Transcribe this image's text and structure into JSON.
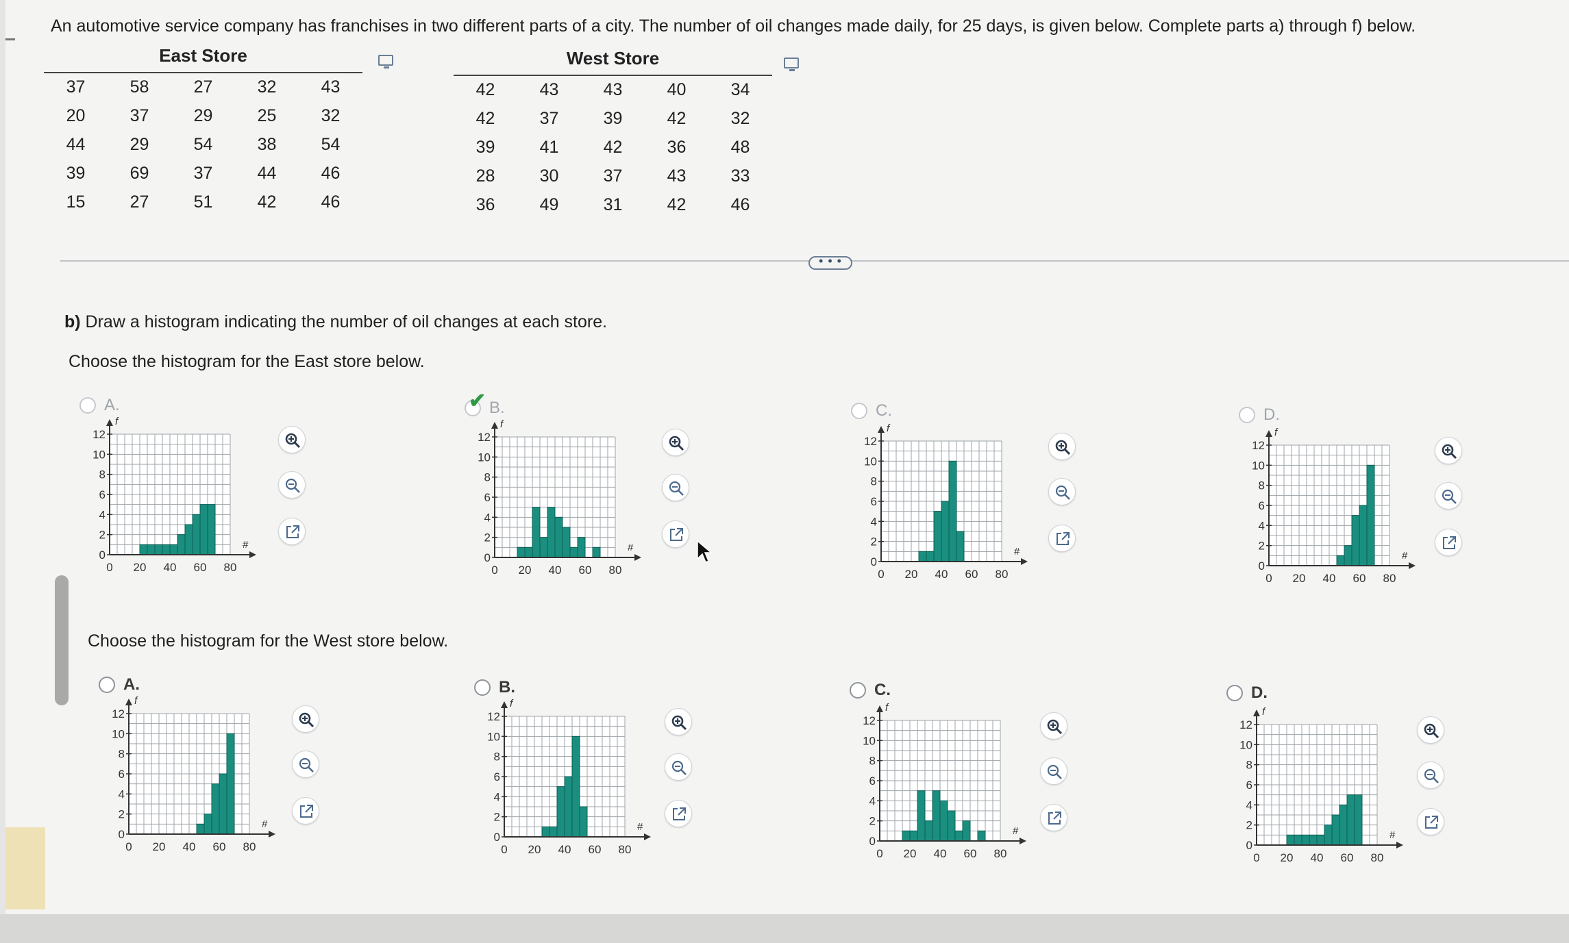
{
  "question": "An automotive service company has franchises in two different parts of a city. The number of oil changes made daily, for 25 days, is given below. Complete parts a) through f) below.",
  "east_table": {
    "title": "East Store",
    "rows": [
      [
        "37",
        "58",
        "27",
        "32",
        "43"
      ],
      [
        "20",
        "37",
        "29",
        "25",
        "32"
      ],
      [
        "44",
        "29",
        "54",
        "38",
        "54"
      ],
      [
        "39",
        "69",
        "37",
        "44",
        "46"
      ],
      [
        "15",
        "27",
        "51",
        "42",
        "46"
      ]
    ]
  },
  "west_table": {
    "title": "West Store",
    "rows": [
      [
        "42",
        "43",
        "43",
        "40",
        "34"
      ],
      [
        "42",
        "37",
        "39",
        "42",
        "32"
      ],
      [
        "39",
        "41",
        "42",
        "36",
        "48"
      ],
      [
        "28",
        "30",
        "37",
        "43",
        "33"
      ],
      [
        "36",
        "49",
        "31",
        "42",
        "46"
      ]
    ]
  },
  "more_button": "• • •",
  "part_b": {
    "label": "b)",
    "text": " Draw a histogram indicating the number of oil changes at each store.",
    "east_prompt": "Choose the histogram for the East store below.",
    "west_prompt": "Choose the histogram for the West store below."
  },
  "colors": {
    "bar": "#1a8f80",
    "grid": "#9da3a8",
    "axis": "#333333",
    "check": "#2f9a43"
  },
  "icons": [
    "zoom-in-icon",
    "zoom-out-icon",
    "open-external-icon",
    "radio-button",
    "checkmark-icon",
    "mouse-cursor-icon",
    "expand-icon"
  ],
  "east_options": [
    {
      "letter": "A.",
      "selected": false
    },
    {
      "letter": "B.",
      "selected": true
    },
    {
      "letter": "C.",
      "selected": false
    },
    {
      "letter": "D.",
      "selected": false
    }
  ],
  "west_options": [
    {
      "letter": "A.",
      "selected": false
    },
    {
      "letter": "B.",
      "selected": false
    },
    {
      "letter": "C.",
      "selected": false
    },
    {
      "letter": "D.",
      "selected": false
    }
  ],
  "chart_data": [
    {
      "id": "east-A",
      "type": "bar",
      "ylabel": "f",
      "xlabel": "#",
      "xlim": [
        0,
        80
      ],
      "ylim": [
        0,
        12
      ],
      "bin_width": 5,
      "bin_starts": [
        20,
        25,
        30,
        35,
        40,
        45,
        50,
        55,
        60,
        65
      ],
      "values": [
        1,
        1,
        1,
        1,
        1,
        2,
        3,
        4,
        5,
        5
      ],
      "xticks": [
        "0",
        "20",
        "40",
        "60",
        "80"
      ],
      "yticks": [
        "0",
        "2",
        "4",
        "6",
        "8",
        "10",
        "12"
      ]
    },
    {
      "id": "east-B",
      "type": "bar",
      "ylabel": "f",
      "xlabel": "#",
      "xlim": [
        0,
        80
      ],
      "ylim": [
        0,
        12
      ],
      "bin_width": 5,
      "bin_starts": [
        15,
        20,
        25,
        30,
        35,
        40,
        45,
        50,
        55,
        60,
        65
      ],
      "values": [
        1,
        1,
        5,
        2,
        5,
        4,
        3,
        1,
        2,
        0,
        1
      ],
      "xticks": [
        "0",
        "20",
        "40",
        "60",
        "80"
      ],
      "yticks": [
        "0",
        "2",
        "4",
        "6",
        "8",
        "10",
        "12"
      ]
    },
    {
      "id": "east-C",
      "type": "bar",
      "ylabel": "f",
      "xlabel": "#",
      "xlim": [
        0,
        80
      ],
      "ylim": [
        0,
        12
      ],
      "bin_width": 5,
      "bin_starts": [
        25,
        30,
        35,
        40,
        45,
        50
      ],
      "values": [
        1,
        1,
        5,
        6,
        10,
        3
      ],
      "xticks": [
        "0",
        "20",
        "40",
        "60",
        "80"
      ],
      "yticks": [
        "0",
        "2",
        "4",
        "6",
        "8",
        "10",
        "12"
      ]
    },
    {
      "id": "east-D",
      "type": "bar",
      "ylabel": "f",
      "xlabel": "#",
      "xlim": [
        0,
        80
      ],
      "ylim": [
        0,
        12
      ],
      "bin_width": 5,
      "bin_starts": [
        45,
        50,
        55,
        60,
        65
      ],
      "values": [
        1,
        2,
        5,
        6,
        10
      ],
      "xticks": [
        "0",
        "20",
        "40",
        "60",
        "80"
      ],
      "yticks": [
        "0",
        "2",
        "4",
        "6",
        "8",
        "10",
        "12"
      ]
    },
    {
      "id": "west-A",
      "type": "bar",
      "ylabel": "f",
      "xlabel": "#",
      "xlim": [
        0,
        80
      ],
      "ylim": [
        0,
        12
      ],
      "bin_width": 5,
      "bin_starts": [
        45,
        50,
        55,
        60,
        65
      ],
      "values": [
        1,
        2,
        5,
        6,
        10
      ],
      "xticks": [
        "0",
        "20",
        "40",
        "60",
        "80"
      ],
      "yticks": [
        "0",
        "2",
        "4",
        "6",
        "8",
        "10",
        "12"
      ]
    },
    {
      "id": "west-B",
      "type": "bar",
      "ylabel": "f",
      "xlabel": "#",
      "xlim": [
        0,
        80
      ],
      "ylim": [
        0,
        12
      ],
      "bin_width": 5,
      "bin_starts": [
        25,
        30,
        35,
        40,
        45,
        50
      ],
      "values": [
        1,
        1,
        5,
        6,
        10,
        3
      ],
      "xticks": [
        "0",
        "20",
        "40",
        "60",
        "80"
      ],
      "yticks": [
        "0",
        "2",
        "4",
        "6",
        "8",
        "10",
        "12"
      ]
    },
    {
      "id": "west-C",
      "type": "bar",
      "ylabel": "f",
      "xlabel": "#",
      "xlim": [
        0,
        80
      ],
      "ylim": [
        0,
        12
      ],
      "bin_width": 5,
      "bin_starts": [
        15,
        20,
        25,
        30,
        35,
        40,
        45,
        50,
        55,
        60,
        65
      ],
      "values": [
        1,
        1,
        5,
        2,
        5,
        4,
        3,
        1,
        2,
        0,
        1
      ],
      "xticks": [
        "0",
        "20",
        "40",
        "60",
        "80"
      ],
      "yticks": [
        "0",
        "2",
        "4",
        "6",
        "8",
        "10",
        "12"
      ]
    },
    {
      "id": "west-D",
      "type": "bar",
      "ylabel": "f",
      "xlabel": "#",
      "xlim": [
        0,
        80
      ],
      "ylim": [
        0,
        12
      ],
      "bin_width": 5,
      "bin_starts": [
        20,
        25,
        30,
        35,
        40,
        45,
        50,
        55,
        60,
        65
      ],
      "values": [
        1,
        1,
        1,
        1,
        1,
        2,
        3,
        4,
        5,
        5
      ],
      "xticks": [
        "0",
        "20",
        "40",
        "60",
        "80"
      ],
      "yticks": [
        "0",
        "2",
        "4",
        "6",
        "8",
        "10",
        "12"
      ]
    }
  ]
}
